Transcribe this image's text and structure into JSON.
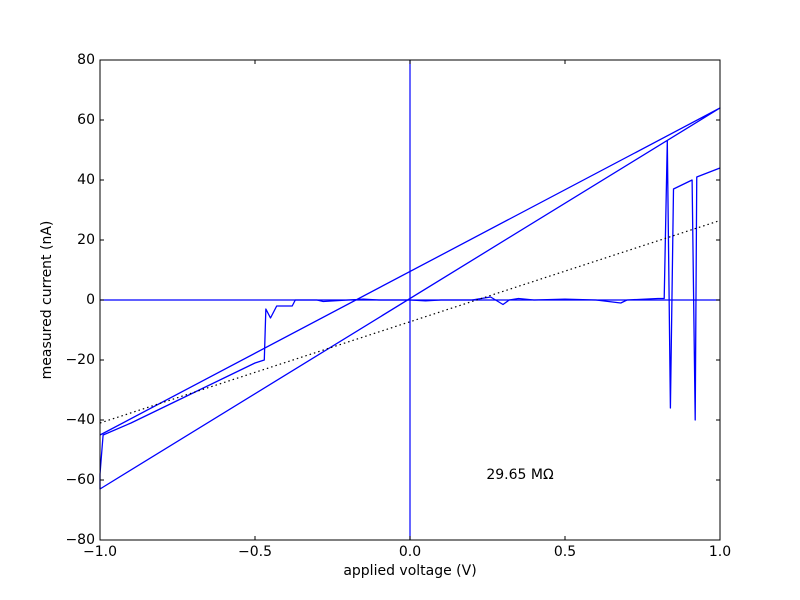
{
  "chart_data": {
    "type": "line",
    "xlabel": "applied voltage (V)",
    "ylabel": "measured current (nA)",
    "annotation": "29.65 MΩ",
    "xlim": [
      -1,
      1
    ],
    "ylim": [
      -80,
      80
    ],
    "xticks": [
      {
        "value": -1,
        "label": "−1.0"
      },
      {
        "value": -0.5,
        "label": "−0.5"
      },
      {
        "value": 0,
        "label": "0.0"
      },
      {
        "value": 0.5,
        "label": "0.5"
      },
      {
        "value": 1,
        "label": "1.0"
      }
    ],
    "yticks": [
      {
        "value": -80,
        "label": "−80"
      },
      {
        "value": -60,
        "label": "−60"
      },
      {
        "value": -40,
        "label": "−40"
      },
      {
        "value": -20,
        "label": "−20"
      },
      0,
      20,
      40,
      60,
      80
    ],
    "axhline": 0,
    "axvline": 0,
    "reference_color": "#0000ff",
    "series": [
      {
        "color": "#0000ff",
        "style": "solid",
        "x": [
          -1,
          1,
          -1,
          -1,
          -0.99,
          -0.9,
          -0.8,
          -0.7,
          -0.6,
          -0.5,
          -0.47,
          -0.465,
          -0.45,
          -0.43,
          -0.38,
          -0.37,
          -0.3,
          -0.28,
          -0.2,
          -0.15,
          -0.1,
          0,
          0.05,
          0.1,
          0.2,
          0.26,
          0.3,
          0.32,
          0.35,
          0.4,
          0.5,
          0.6,
          0.68,
          0.7,
          0.8,
          0.82,
          0.83,
          0.84,
          0.85,
          0.91,
          0.92,
          0.925,
          1
        ],
        "values": [
          -45,
          64,
          -63,
          -58,
          -45,
          -41,
          -36,
          -31,
          -26,
          -21,
          -20,
          -3,
          -6,
          -2,
          -2,
          0,
          0,
          -0.5,
          0,
          0.3,
          0,
          0,
          -0.3,
          0,
          0,
          1,
          -1.5,
          0,
          0.5,
          0,
          0.3,
          0,
          -1,
          0,
          0.5,
          0.5,
          53,
          -36,
          37,
          40,
          -40,
          41,
          44
        ]
      },
      {
        "color": "#000000",
        "style": "dotted",
        "x": [
          -1,
          1
        ],
        "values": [
          -41,
          26.5
        ]
      }
    ]
  }
}
